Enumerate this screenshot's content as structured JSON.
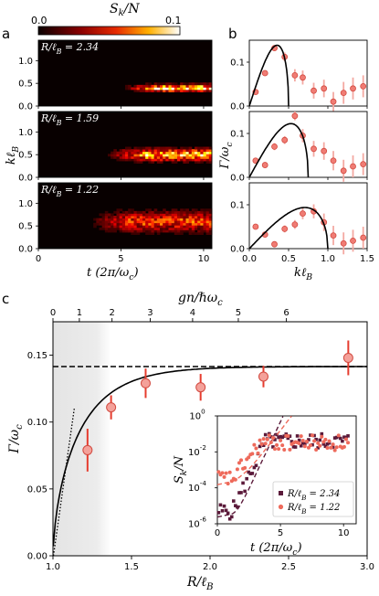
{
  "figure": {
    "panel_labels": [
      "a",
      "b",
      "c"
    ],
    "colorbar": {
      "title": "S_k/N",
      "min_label": "0.0",
      "max_label": "0.1"
    }
  },
  "chart_data": [
    {
      "id": "a",
      "type": "heatmap",
      "colormap": "hot",
      "xlabel": "t (2π/ω_c)",
      "ylabel": "kℓ_B",
      "xlim": [
        0,
        10.5
      ],
      "ylim": [
        0,
        1.45
      ],
      "xticks": [
        "0",
        "5",
        "10"
      ],
      "yticks": [
        "0.0",
        "0.5",
        "1.0"
      ],
      "subpanels": [
        {
          "label": "R/ℓ_B = 2.34",
          "onset_t": 6.0,
          "band_k": 0.4,
          "band_width": 0.07,
          "peak": 1.0
        },
        {
          "label": "R/ℓ_B = 1.59",
          "onset_t": 5.0,
          "band_k": 0.5,
          "band_width": 0.12,
          "peak": 0.85
        },
        {
          "label": "R/ℓ_B = 1.22",
          "onset_t": 4.0,
          "band_k": 0.6,
          "band_width": 0.2,
          "peak": 0.55
        }
      ]
    },
    {
      "id": "b",
      "type": "scatter",
      "xlabel": "kℓ_B",
      "ylabel": "Γ/ω_c",
      "xlim": [
        0,
        1.5
      ],
      "ylim": [
        0,
        0.15
      ],
      "xticks": [
        "0.0",
        "0.5",
        "1.0",
        "1.5"
      ],
      "yticks": [
        "0.0",
        "0.1"
      ],
      "line_color": "#000000",
      "marker_color": "#f07c74",
      "subpanels": [
        {
          "curve_peak_k": 0.4,
          "curve_peak": 0.133,
          "curve_end_k": 0.5,
          "points": [
            {
              "x": 0.08,
              "y": 0.032,
              "err": 0.005
            },
            {
              "x": 0.2,
              "y": 0.075,
              "err": 0.006
            },
            {
              "x": 0.32,
              "y": 0.132,
              "err": 0.007
            },
            {
              "x": 0.45,
              "y": 0.112,
              "err": 0.01
            },
            {
              "x": 0.58,
              "y": 0.07,
              "err": 0.014
            },
            {
              "x": 0.68,
              "y": 0.065,
              "err": 0.016
            },
            {
              "x": 0.82,
              "y": 0.035,
              "err": 0.018
            },
            {
              "x": 0.95,
              "y": 0.04,
              "err": 0.02
            },
            {
              "x": 1.07,
              "y": 0.01,
              "err": 0.022
            },
            {
              "x": 1.2,
              "y": 0.03,
              "err": 0.025
            },
            {
              "x": 1.32,
              "y": 0.04,
              "err": 0.025
            },
            {
              "x": 1.45,
              "y": 0.045,
              "err": 0.025
            }
          ]
        },
        {
          "curve_peak_k": 0.58,
          "curve_peak": 0.12,
          "curve_end_k": 0.75,
          "points": [
            {
              "x": 0.08,
              "y": 0.038,
              "err": 0.005
            },
            {
              "x": 0.2,
              "y": 0.028,
              "err": 0.005
            },
            {
              "x": 0.32,
              "y": 0.07,
              "err": 0.008
            },
            {
              "x": 0.45,
              "y": 0.085,
              "err": 0.009
            },
            {
              "x": 0.58,
              "y": 0.14,
              "err": 0.01
            },
            {
              "x": 0.68,
              "y": 0.095,
              "err": 0.015
            },
            {
              "x": 0.82,
              "y": 0.065,
              "err": 0.018
            },
            {
              "x": 0.95,
              "y": 0.06,
              "err": 0.02
            },
            {
              "x": 1.07,
              "y": 0.038,
              "err": 0.022
            },
            {
              "x": 1.2,
              "y": 0.015,
              "err": 0.025
            },
            {
              "x": 1.32,
              "y": 0.025,
              "err": 0.025
            },
            {
              "x": 1.45,
              "y": 0.03,
              "err": 0.025
            }
          ]
        },
        {
          "curve_peak_k": 0.8,
          "curve_peak": 0.09,
          "curve_end_k": 1.0,
          "points": [
            {
              "x": 0.08,
              "y": 0.05,
              "err": 0.005
            },
            {
              "x": 0.2,
              "y": 0.032,
              "err": 0.005
            },
            {
              "x": 0.32,
              "y": 0.01,
              "err": 0.004
            },
            {
              "x": 0.45,
              "y": 0.045,
              "err": 0.008
            },
            {
              "x": 0.58,
              "y": 0.055,
              "err": 0.01
            },
            {
              "x": 0.68,
              "y": 0.08,
              "err": 0.013
            },
            {
              "x": 0.82,
              "y": 0.085,
              "err": 0.016
            },
            {
              "x": 0.95,
              "y": 0.06,
              "err": 0.02
            },
            {
              "x": 1.07,
              "y": 0.03,
              "err": 0.022
            },
            {
              "x": 1.2,
              "y": 0.012,
              "err": 0.025
            },
            {
              "x": 1.32,
              "y": 0.018,
              "err": 0.025
            },
            {
              "x": 1.45,
              "y": 0.025,
              "err": 0.025
            }
          ]
        }
      ]
    },
    {
      "id": "c",
      "type": "scatter",
      "xlabel": "R/ℓ_B",
      "ylabel": "Γ/ω_c",
      "top_xlabel": "gn/ℏω_c",
      "xlim": [
        1.0,
        3.0
      ],
      "ylim": [
        0,
        0.175
      ],
      "xticks": [
        "1.0",
        "1.5",
        "2.0",
        "2.5",
        "3.0"
      ],
      "yticks": [
        "0.00",
        "0.05",
        "0.10",
        "0.15"
      ],
      "top_xticks": [
        "0",
        "1",
        "2",
        "3",
        "4",
        "5",
        "6"
      ],
      "top_xtick_positions_R": [
        1.0,
        1.168,
        1.376,
        1.619,
        1.889,
        2.18,
        2.486
      ],
      "shaded_region_R": [
        1.0,
        1.37
      ],
      "asymptote": 0.1415,
      "curve_R0": 1.0,
      "curve_scale": 0.24,
      "dotted_slope": 0.83,
      "points": [
        {
          "x": 1.22,
          "y": 0.079,
          "err": 0.016
        },
        {
          "x": 1.37,
          "y": 0.111,
          "err": 0.009
        },
        {
          "x": 1.59,
          "y": 0.129,
          "err": 0.011
        },
        {
          "x": 1.94,
          "y": 0.126,
          "err": 0.01
        },
        {
          "x": 2.34,
          "y": 0.134,
          "err": 0.008
        },
        {
          "x": 2.88,
          "y": 0.148,
          "err": 0.013
        }
      ]
    },
    {
      "id": "c-inset",
      "type": "scatter",
      "xlabel": "t (2π/ω_c)",
      "ylabel": "S_k/N",
      "log_y": true,
      "xlim": [
        0,
        11
      ],
      "ylim_exp": [
        -6,
        0
      ],
      "xticks": [
        "0",
        "5",
        "10"
      ],
      "yticks": [
        "10^0",
        "10^-2",
        "10^-4",
        "10^-6"
      ],
      "series": [
        {
          "name": "R/ℓ_B = 2.34",
          "marker": "square",
          "color": "#5b1a3a",
          "growth": 1.5,
          "start_exp": -5.3,
          "sat_exp": -1.4
        },
        {
          "name": "R/ℓ_B = 1.22",
          "marker": "circle",
          "color": "#ee6a5b",
          "growth": 0.9,
          "start_exp": -3.5,
          "sat_exp": -1.5
        }
      ]
    }
  ]
}
